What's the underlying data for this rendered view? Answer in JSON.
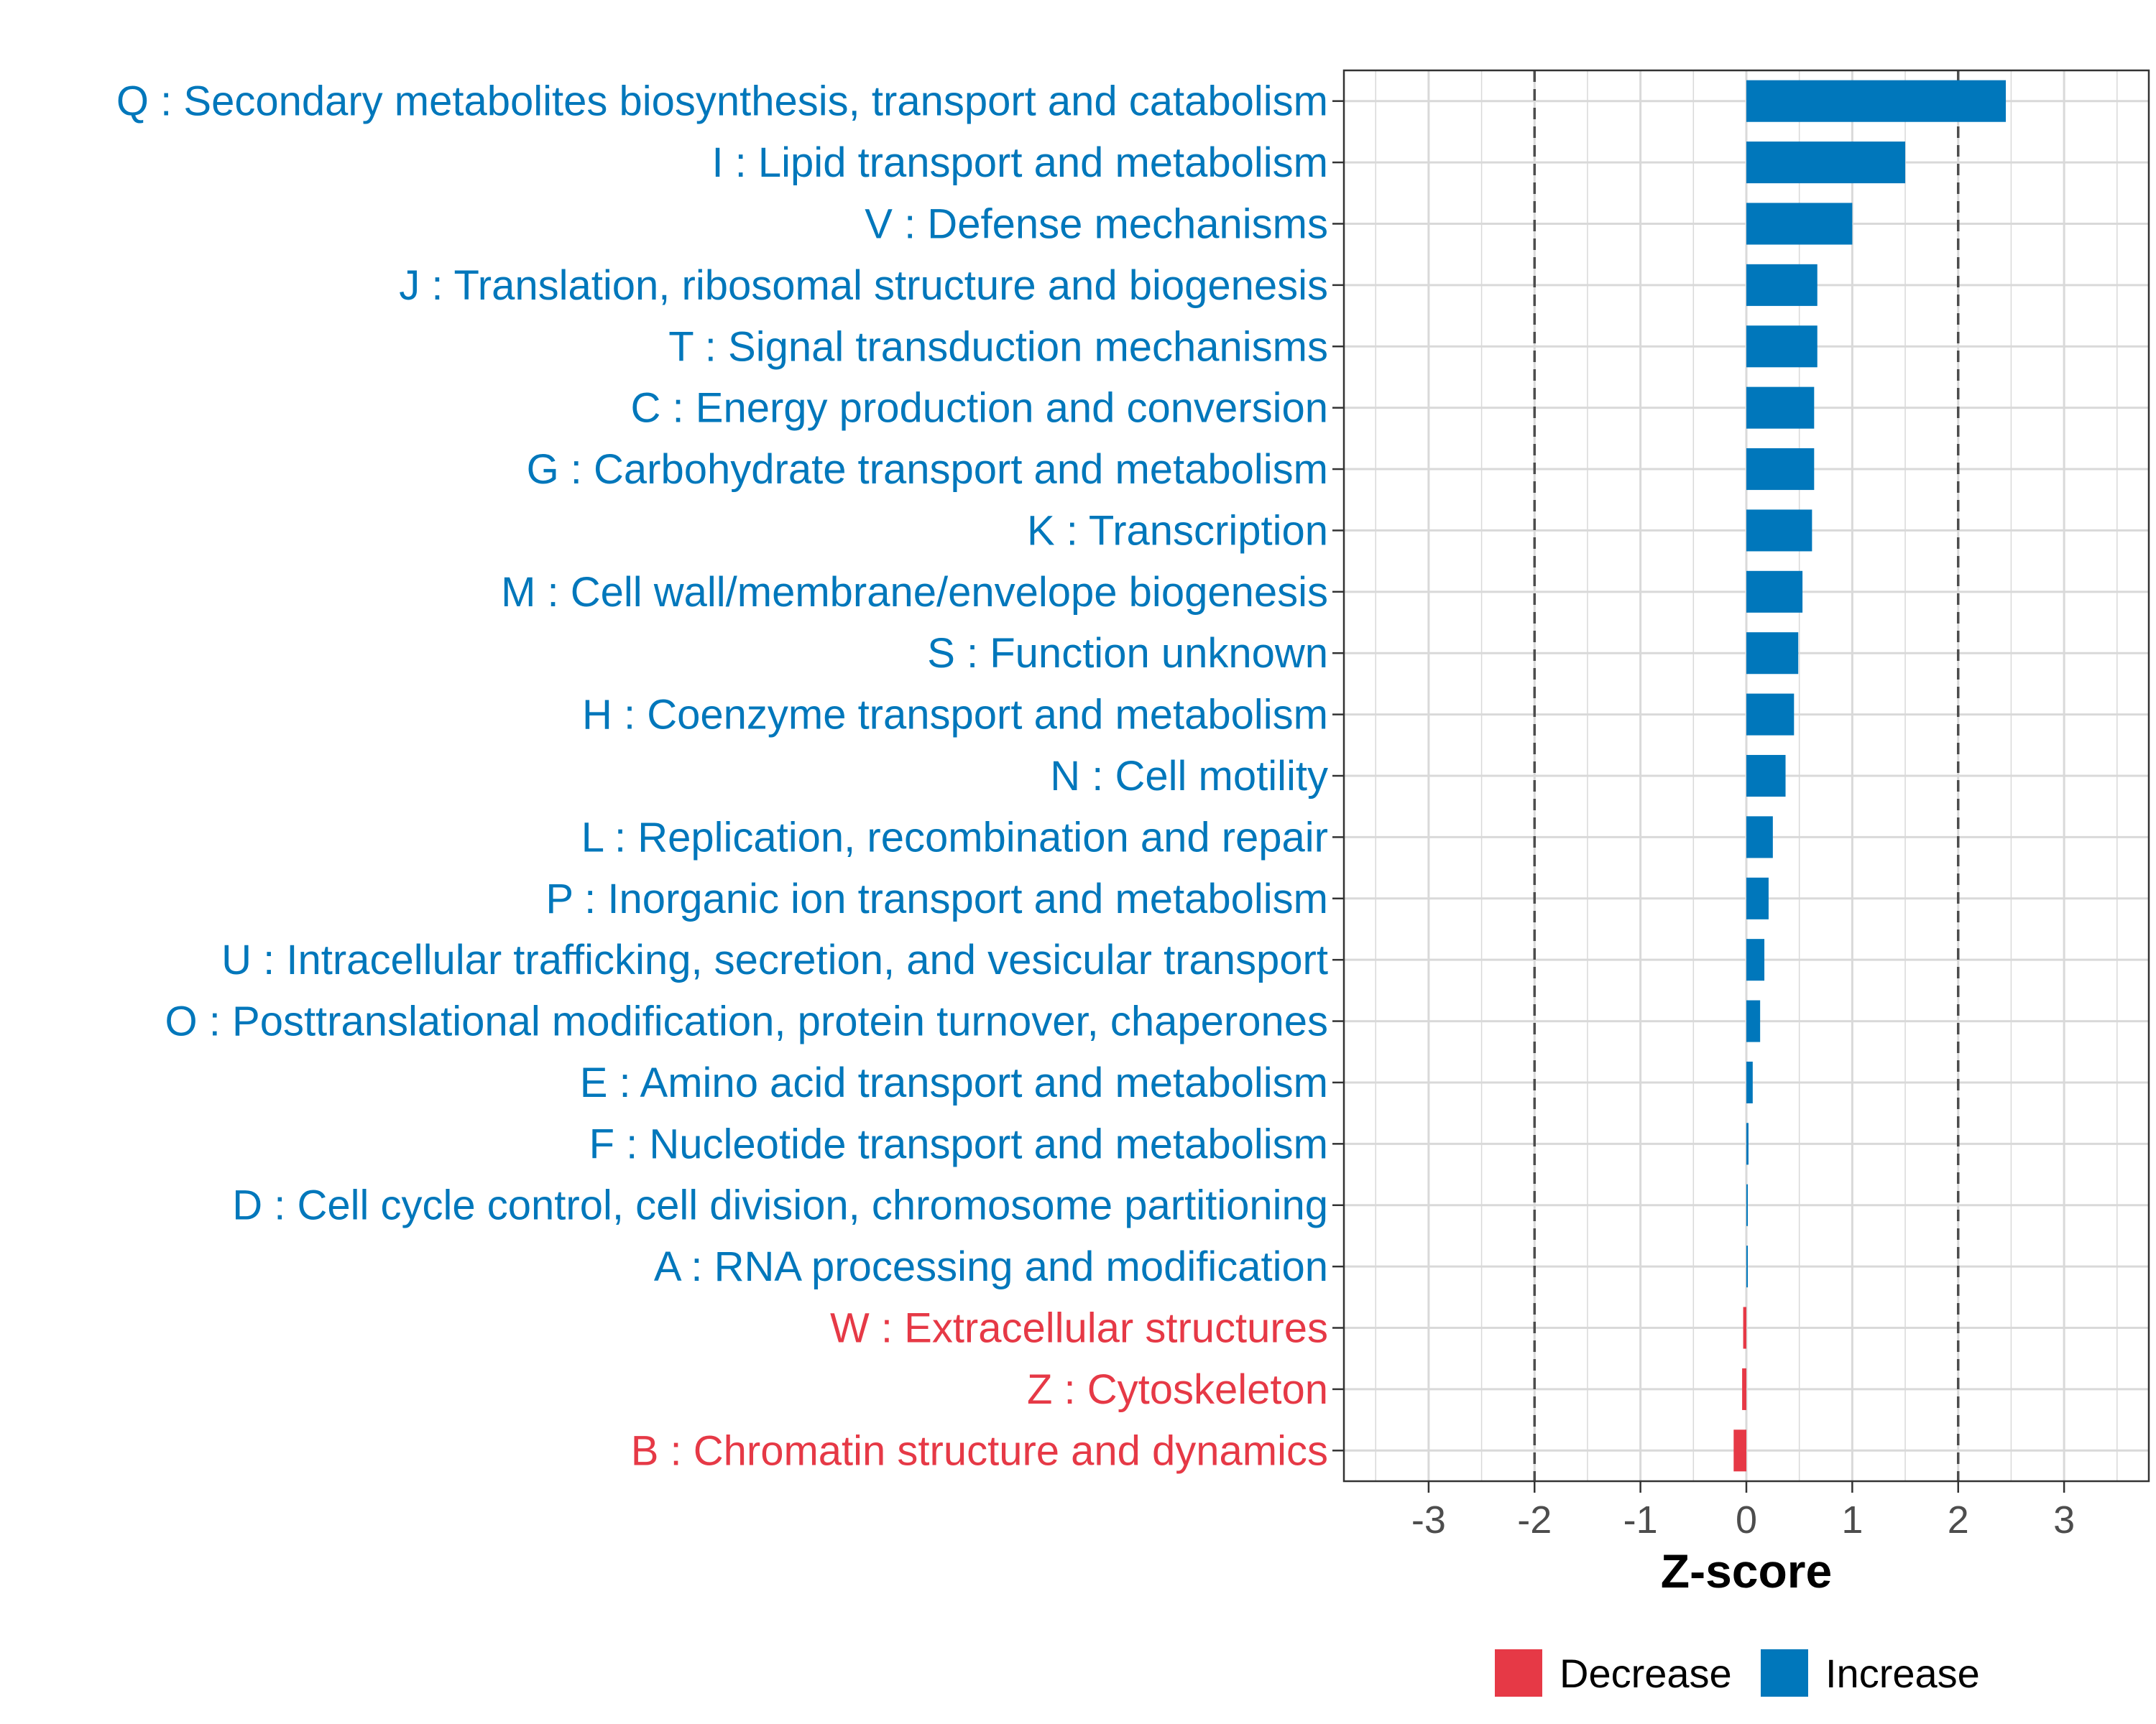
{
  "chart_data": {
    "type": "bar",
    "orientation": "horizontal",
    "title": "",
    "xlabel": "Z-score",
    "ylabel": "",
    "xlim": [
      -3.8,
      3.8
    ],
    "xticks": [
      -3,
      -2,
      -1,
      0,
      1,
      2,
      3
    ],
    "xtick_labels": [
      "-3",
      "-2",
      "-1",
      "0",
      "1",
      "2",
      "3"
    ],
    "reference_lines": [
      -2,
      2
    ],
    "grid": true,
    "legend_position": "bottom",
    "colors": {
      "Decrease": "#e63946",
      "Increase": "#0077bb"
    },
    "legend": [
      {
        "label": "Decrease",
        "color": "#e63946"
      },
      {
        "label": "Increase",
        "color": "#0077bb"
      }
    ],
    "categories": [
      "Q : Secondary metabolites biosynthesis, transport and catabolism",
      "I : Lipid transport and metabolism",
      "V : Defense mechanisms",
      "J : Translation, ribosomal structure and biogenesis",
      "T : Signal transduction mechanisms",
      "C : Energy production and conversion",
      "G : Carbohydrate transport and metabolism",
      "K : Transcription",
      "M : Cell wall/membrane/envelope biogenesis",
      "S : Function unknown",
      "H : Coenzyme transport and metabolism",
      "N : Cell motility",
      "L : Replication, recombination and repair",
      "P : Inorganic ion transport and metabolism",
      "U : Intracellular trafficking, secretion, and vesicular transport",
      "O : Posttranslational modification, protein turnover, chaperones",
      "E : Amino acid transport and metabolism",
      "F : Nucleotide transport and metabolism",
      "D : Cell cycle control, cell division, chromosome partitioning",
      "A : RNA processing and modification",
      "W : Extracellular structures",
      "Z : Cytoskeleton",
      "B : Chromatin structure and dynamics"
    ],
    "values": [
      2.45,
      1.5,
      1.0,
      0.67,
      0.67,
      0.64,
      0.64,
      0.62,
      0.53,
      0.49,
      0.45,
      0.37,
      0.25,
      0.21,
      0.17,
      0.13,
      0.06,
      0.02,
      0.01,
      0.005,
      -0.03,
      -0.04,
      -0.12
    ]
  }
}
